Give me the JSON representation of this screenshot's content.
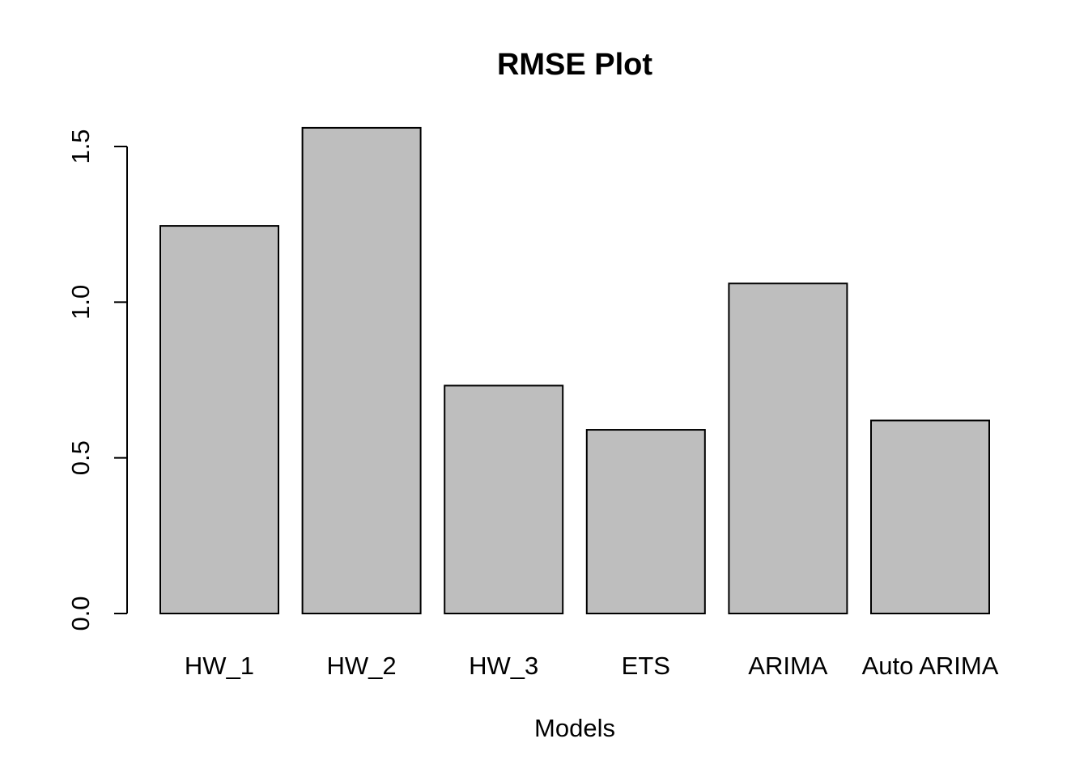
{
  "chart_data": {
    "type": "bar",
    "title": "RMSE Plot",
    "xlabel": "Models",
    "ylabel": "",
    "categories": [
      "HW_1",
      "HW_2",
      "HW_3",
      "ETS",
      "ARIMA",
      "Auto ARIMA"
    ],
    "values": [
      1.245,
      1.56,
      0.732,
      0.59,
      1.06,
      0.62
    ],
    "ylim": [
      0,
      1.5
    ],
    "yticks": [
      "0.0",
      "0.5",
      "1.0",
      "1.5"
    ],
    "grid": false,
    "colors": {
      "bar_fill": "#bebebe",
      "bar_stroke": "#000000"
    }
  }
}
